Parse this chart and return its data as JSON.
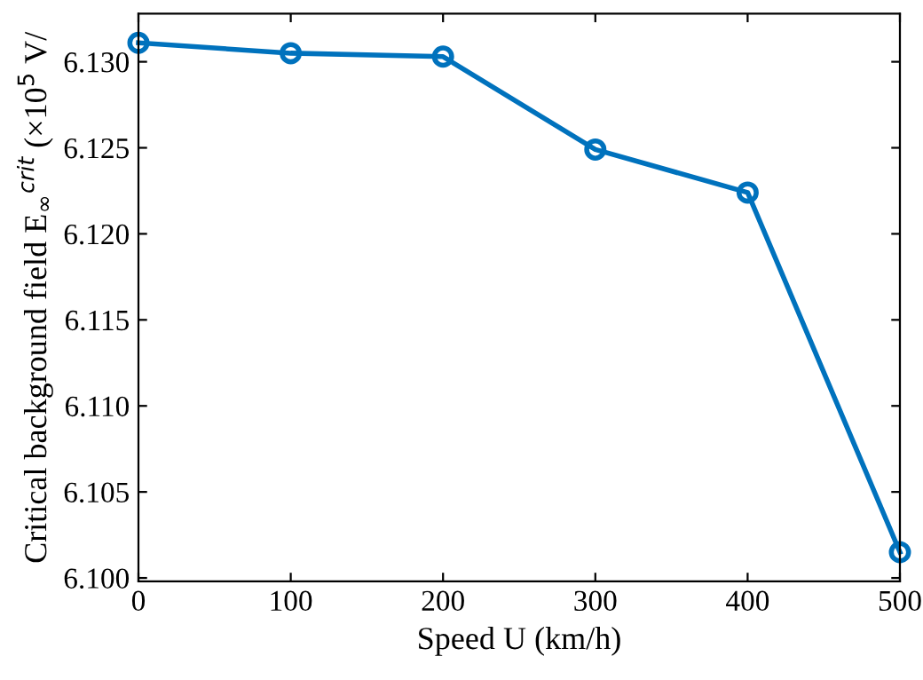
{
  "chart_data": {
    "type": "line",
    "xlabel": "Speed U (km/h)",
    "ylabel": "Critical background field E$_{∞}$$^{crit}$ (×10$^{5}$ V/",
    "x": [
      0,
      100,
      200,
      300,
      400,
      500
    ],
    "series": [
      {
        "color": "#0072bd",
        "values": [
          6.1311,
          6.1305,
          6.1303,
          6.1249,
          6.1224,
          6.1015
        ]
      }
    ],
    "xlim": [
      0,
      500
    ],
    "xticks": [
      0,
      100,
      200,
      300,
      400,
      500
    ],
    "ylim": [
      6.0998,
      6.1328
    ],
    "yticks": [
      {
        "value": 6.1,
        "label": "6.100"
      },
      {
        "value": 6.105,
        "label": "6.105"
      },
      {
        "value": 6.11,
        "label": "6.110"
      },
      {
        "value": 6.115,
        "label": "6.115"
      },
      {
        "value": 6.12,
        "label": "6.120"
      },
      {
        "value": 6.125,
        "label": "6.125"
      },
      {
        "value": 6.13,
        "label": "6.130"
      }
    ],
    "marker": "circle",
    "line_style": "solid",
    "grid": false,
    "legend": false
  }
}
